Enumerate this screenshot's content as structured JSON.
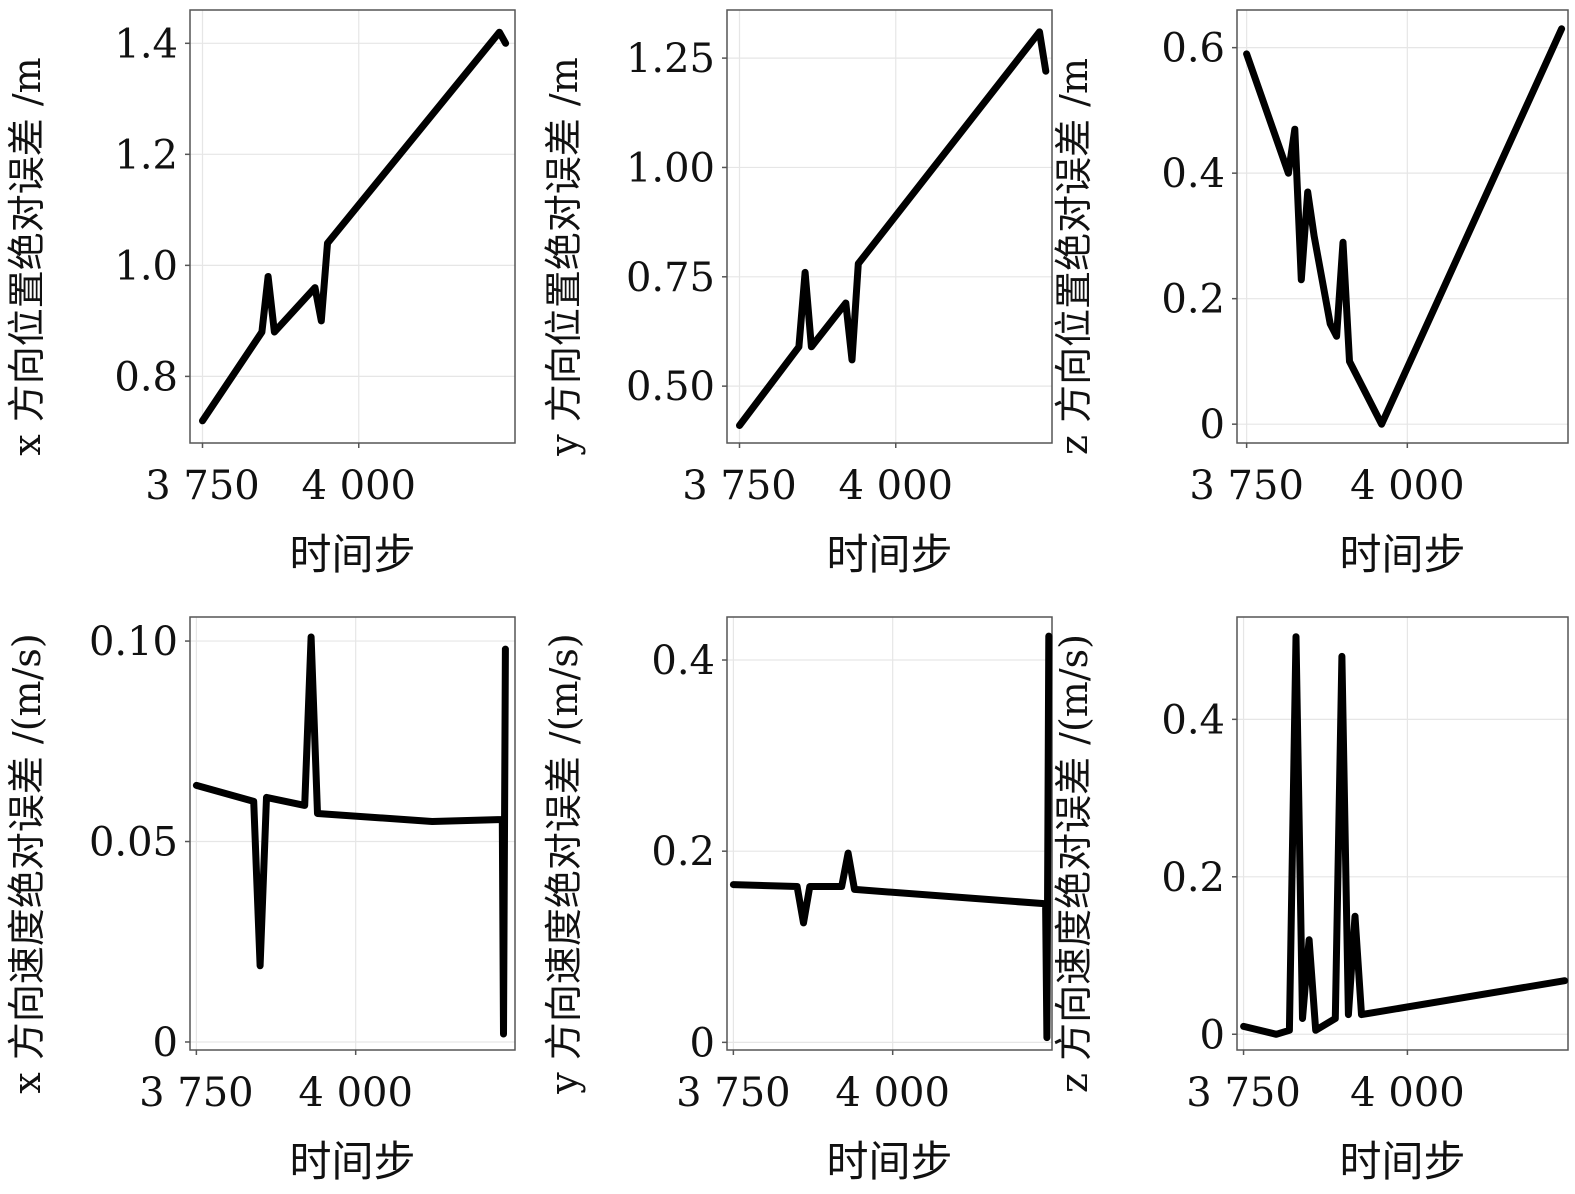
{
  "chart_data": [
    {
      "type": "line",
      "xlabel": "时间步",
      "ylabel": "x 方向位置绝对误差 /m",
      "xticks": [
        3750,
        4000
      ],
      "xtick_labels": [
        "3 750",
        "4 000"
      ],
      "yticks": [
        0.8,
        1.0,
        1.2,
        1.4
      ],
      "ytick_labels": [
        "0.8",
        "1.0",
        "1.2",
        "1.4"
      ],
      "xlim": [
        3730,
        4250
      ],
      "ylim": [
        0.68,
        1.46
      ],
      "grid": true,
      "series": [
        {
          "x": [
            3750,
            3845,
            3855,
            3865,
            3930,
            3940,
            3950,
            4225,
            4235
          ],
          "y": [
            0.72,
            0.88,
            0.98,
            0.88,
            0.96,
            0.9,
            1.04,
            1.42,
            1.4
          ]
        }
      ]
    },
    {
      "type": "line",
      "xlabel": "时间步",
      "ylabel": "y 方向位置绝对误差 /m",
      "xticks": [
        3750,
        4000
      ],
      "xtick_labels": [
        "3 750",
        "4 000"
      ],
      "yticks": [
        0.5,
        0.75,
        1.0,
        1.25
      ],
      "ytick_labels": [
        "0.50",
        "0.75",
        "1.00",
        "1.25"
      ],
      "xlim": [
        3730,
        4250
      ],
      "ylim": [
        0.37,
        1.36
      ],
      "grid": true,
      "series": [
        {
          "x": [
            3750,
            3845,
            3855,
            3865,
            3920,
            3930,
            3940,
            4230,
            4240
          ],
          "y": [
            0.41,
            0.59,
            0.76,
            0.59,
            0.69,
            0.56,
            0.78,
            1.31,
            1.22
          ]
        }
      ]
    },
    {
      "type": "line",
      "xlabel": "时间步",
      "ylabel": "z 方向位置绝对误差 /m",
      "xticks": [
        3750,
        4000
      ],
      "xtick_labels": [
        "3 750",
        "4 000"
      ],
      "yticks": [
        0,
        0.2,
        0.4,
        0.6
      ],
      "ytick_labels": [
        "0",
        "0.2",
        "0.4",
        "0.6"
      ],
      "xlim": [
        3735,
        4250
      ],
      "ylim": [
        -0.03,
        0.66
      ],
      "grid": true,
      "series": [
        {
          "x": [
            3750,
            3815,
            3825,
            3835,
            3845,
            3855,
            3880,
            3890,
            3900,
            3910,
            3960,
            4240
          ],
          "y": [
            0.59,
            0.4,
            0.47,
            0.23,
            0.37,
            0.3,
            0.16,
            0.14,
            0.29,
            0.1,
            0.0,
            0.63
          ]
        }
      ]
    },
    {
      "type": "line",
      "xlabel": "时间步",
      "ylabel": "x 方向速度绝对误差 /(m/s)",
      "xticks": [
        3750,
        4000
      ],
      "xtick_labels": [
        "3 750",
        "4 000"
      ],
      "yticks": [
        0,
        0.05,
        0.1
      ],
      "ytick_labels": [
        "0",
        "0.05",
        "0.10"
      ],
      "xlim": [
        3740,
        4250
      ],
      "ylim": [
        -0.002,
        0.106
      ],
      "grid": true,
      "series": [
        {
          "x": [
            3750,
            3840,
            3850,
            3860,
            3920,
            3930,
            3940,
            4120,
            4230,
            4232,
            4235
          ],
          "y": [
            0.064,
            0.06,
            0.019,
            0.061,
            0.059,
            0.101,
            0.057,
            0.055,
            0.0555,
            0.002,
            0.098
          ]
        }
      ]
    },
    {
      "type": "line",
      "xlabel": "时间步",
      "ylabel": "y 方向速度绝对误差 /(m/s)",
      "xticks": [
        3750,
        4000
      ],
      "xtick_labels": [
        "3 750",
        "4 000"
      ],
      "yticks": [
        0,
        0.2,
        0.4
      ],
      "ytick_labels": [
        "0",
        "0.2",
        "0.4"
      ],
      "xlim": [
        3740,
        4250
      ],
      "ylim": [
        -0.008,
        0.445
      ],
      "grid": true,
      "series": [
        {
          "x": [
            3750,
            3850,
            3860,
            3870,
            3920,
            3930,
            3940,
            4240,
            4242,
            4245
          ],
          "y": [
            0.165,
            0.163,
            0.125,
            0.163,
            0.163,
            0.198,
            0.16,
            0.145,
            0.005,
            0.425
          ]
        }
      ]
    },
    {
      "type": "line",
      "xlabel": "时间步",
      "ylabel": "z 方向速度绝对误差 /(m/s)",
      "xticks": [
        3750,
        4000
      ],
      "xtick_labels": [
        "3 750",
        "4 000"
      ],
      "yticks": [
        0,
        0.2,
        0.4
      ],
      "ytick_labels": [
        "0",
        "0.2",
        "0.4"
      ],
      "xlim": [
        3740,
        4245
      ],
      "ylim": [
        -0.02,
        0.53
      ],
      "grid": true,
      "series": [
        {
          "x": [
            3750,
            3800,
            3820,
            3830,
            3840,
            3850,
            3860,
            3890,
            3900,
            3910,
            3920,
            3930,
            4240
          ],
          "y": [
            0.01,
            0.0,
            0.005,
            0.505,
            0.02,
            0.12,
            0.005,
            0.02,
            0.48,
            0.025,
            0.15,
            0.025,
            0.068
          ]
        }
      ]
    }
  ]
}
